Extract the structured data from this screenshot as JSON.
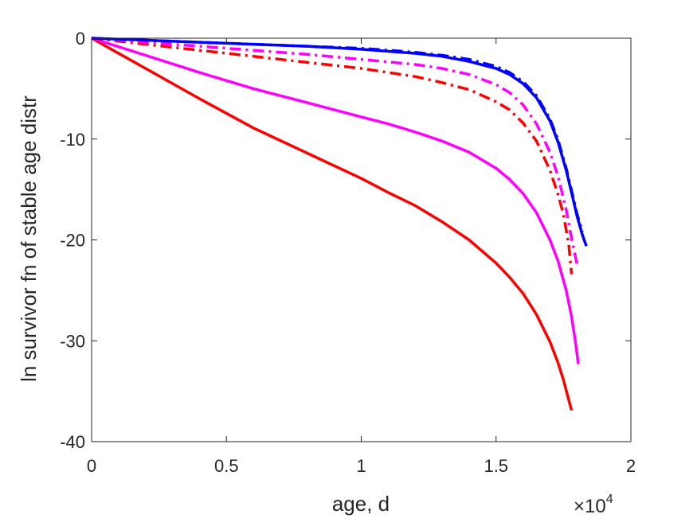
{
  "chart_data": {
    "type": "line",
    "xlabel": "age, d",
    "ylabel": "ln survivor fn of stable age distr",
    "x_exponent_base": "10",
    "x_exponent_power": "4",
    "x_exponent_sign": "×",
    "xlim": [
      0,
      20000
    ],
    "ylim": [
      -40,
      0
    ],
    "xticks": [
      0,
      5000,
      10000,
      15000,
      20000
    ],
    "xtick_labels": [
      "0",
      "0.5",
      "1",
      "1.5",
      "2"
    ],
    "yticks": [
      0,
      -10,
      -20,
      -30,
      -40
    ],
    "ytick_labels": [
      "0",
      "-10",
      "-20",
      "-30",
      "-40"
    ],
    "grid": false,
    "series": [
      {
        "color": "#ff0000",
        "style": "solid",
        "x": [
          0,
          2000,
          4000,
          6000,
          8000,
          10000,
          11000,
          12000,
          13000,
          14000,
          15000,
          15500,
          16000,
          16500,
          17000,
          17300,
          17500,
          17700,
          17800
        ],
        "y": [
          0,
          -3.0,
          -6.0,
          -8.9,
          -11.4,
          -13.9,
          -15.3,
          -16.6,
          -18.2,
          -20.0,
          -22.3,
          -23.7,
          -25.3,
          -27.4,
          -30.1,
          -32.2,
          -33.9,
          -35.9,
          -36.9
        ]
      },
      {
        "color": "#ff00ff",
        "style": "solid",
        "x": [
          0,
          2000,
          4000,
          6000,
          8000,
          10000,
          11000,
          12000,
          13000,
          14000,
          15000,
          15500,
          16000,
          16500,
          17000,
          17300,
          17600,
          17800,
          17950,
          18050
        ],
        "y": [
          0,
          -1.7,
          -3.4,
          -5.0,
          -6.4,
          -7.8,
          -8.5,
          -9.3,
          -10.2,
          -11.3,
          -12.9,
          -14.0,
          -15.4,
          -17.3,
          -20.0,
          -22.1,
          -25.0,
          -27.6,
          -30.2,
          -32.3
        ]
      },
      {
        "color": "#ff0000",
        "style": "dashdot",
        "x": [
          0,
          2000,
          4000,
          6000,
          8000,
          10000,
          12000,
          13000,
          14000,
          15000,
          15500,
          16000,
          16500,
          17000,
          17300,
          17500,
          17700,
          17800
        ],
        "y": [
          0,
          -0.6,
          -1.2,
          -1.8,
          -2.4,
          -3.0,
          -3.8,
          -4.4,
          -5.1,
          -6.3,
          -7.1,
          -8.4,
          -10.2,
          -13.1,
          -15.5,
          -17.5,
          -20.5,
          -23.4
        ]
      },
      {
        "color": "#ff00ff",
        "style": "dashdot",
        "x": [
          0,
          2000,
          4000,
          6000,
          8000,
          10000,
          12000,
          13000,
          14000,
          15000,
          15500,
          16000,
          16500,
          17000,
          17300,
          17600,
          17800,
          18000
        ],
        "y": [
          0,
          -0.4,
          -0.8,
          -1.2,
          -1.6,
          -2.1,
          -2.6,
          -3.0,
          -3.6,
          -4.6,
          -5.4,
          -6.6,
          -8.5,
          -11.3,
          -13.7,
          -17.0,
          -19.8,
          -22.4
        ]
      },
      {
        "color": "#0000ff",
        "style": "dashdot",
        "x": [
          0,
          2000,
          4000,
          6000,
          8000,
          10000,
          12000,
          13000,
          14000,
          15000,
          15500,
          16000,
          16500,
          17000,
          17300,
          17600,
          17800,
          18000,
          18200
        ],
        "y": [
          0,
          -0.2,
          -0.4,
          -0.6,
          -0.8,
          -1.0,
          -1.4,
          -1.7,
          -2.1,
          -2.8,
          -3.4,
          -4.3,
          -5.7,
          -8.0,
          -10.1,
          -12.9,
          -15.1,
          -17.4,
          -19.2
        ]
      },
      {
        "color": "#0000ff",
        "style": "solid",
        "x": [
          0,
          2000,
          4000,
          6000,
          8000,
          10000,
          12000,
          13000,
          14000,
          15000,
          15500,
          16000,
          16500,
          17000,
          17300,
          17600,
          17800,
          18000,
          18200,
          18350
        ],
        "y": [
          0,
          -0.2,
          -0.4,
          -0.6,
          -0.8,
          -1.1,
          -1.5,
          -1.8,
          -2.3,
          -3.0,
          -3.6,
          -4.5,
          -5.9,
          -8.2,
          -10.3,
          -13.1,
          -15.3,
          -17.6,
          -19.5,
          -20.6
        ]
      }
    ]
  }
}
